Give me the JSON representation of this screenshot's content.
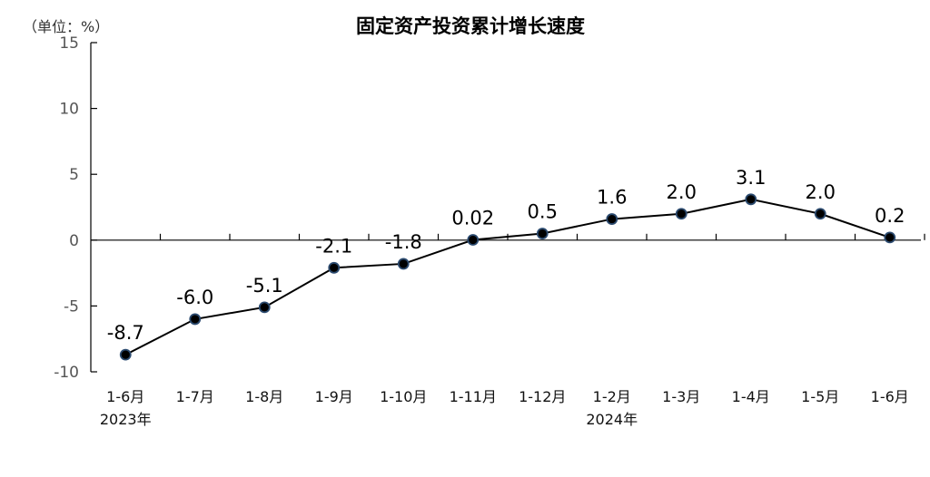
{
  "chart_data": {
    "type": "line",
    "title": "固定资产投资累计增长速度",
    "unit_label": "（单位：%）",
    "categories": [
      "1-6月",
      "1-7月",
      "1-8月",
      "1-9月",
      "1-10月",
      "1-11月",
      "1-12月",
      "1-2月",
      "1-3月",
      "1-4月",
      "1-5月",
      "1-6月"
    ],
    "year_labels": [
      {
        "label": "2023年",
        "index": 0
      },
      {
        "label": "2024年",
        "index": 7
      }
    ],
    "series": [
      {
        "values": [
          -8.7,
          -6.0,
          -5.1,
          -2.1,
          -1.8,
          0.02,
          0.5,
          1.6,
          2.0,
          3.1,
          2.0,
          0.2
        ],
        "data_labels": [
          "-8.7",
          "-6.0",
          "-5.1",
          "-2.1",
          "-1.8",
          "0.02",
          "0.5",
          "1.6",
          "2.0",
          "3.1",
          "2.0",
          "0.2"
        ]
      }
    ],
    "yticks": [
      -10,
      -5,
      0,
      5,
      10,
      15
    ],
    "ylim": [
      -10,
      15
    ],
    "grid": false,
    "legend": "none",
    "line_color": "#000000",
    "marker_fill": "#000000",
    "marker_edge": "#2b4a6f"
  }
}
